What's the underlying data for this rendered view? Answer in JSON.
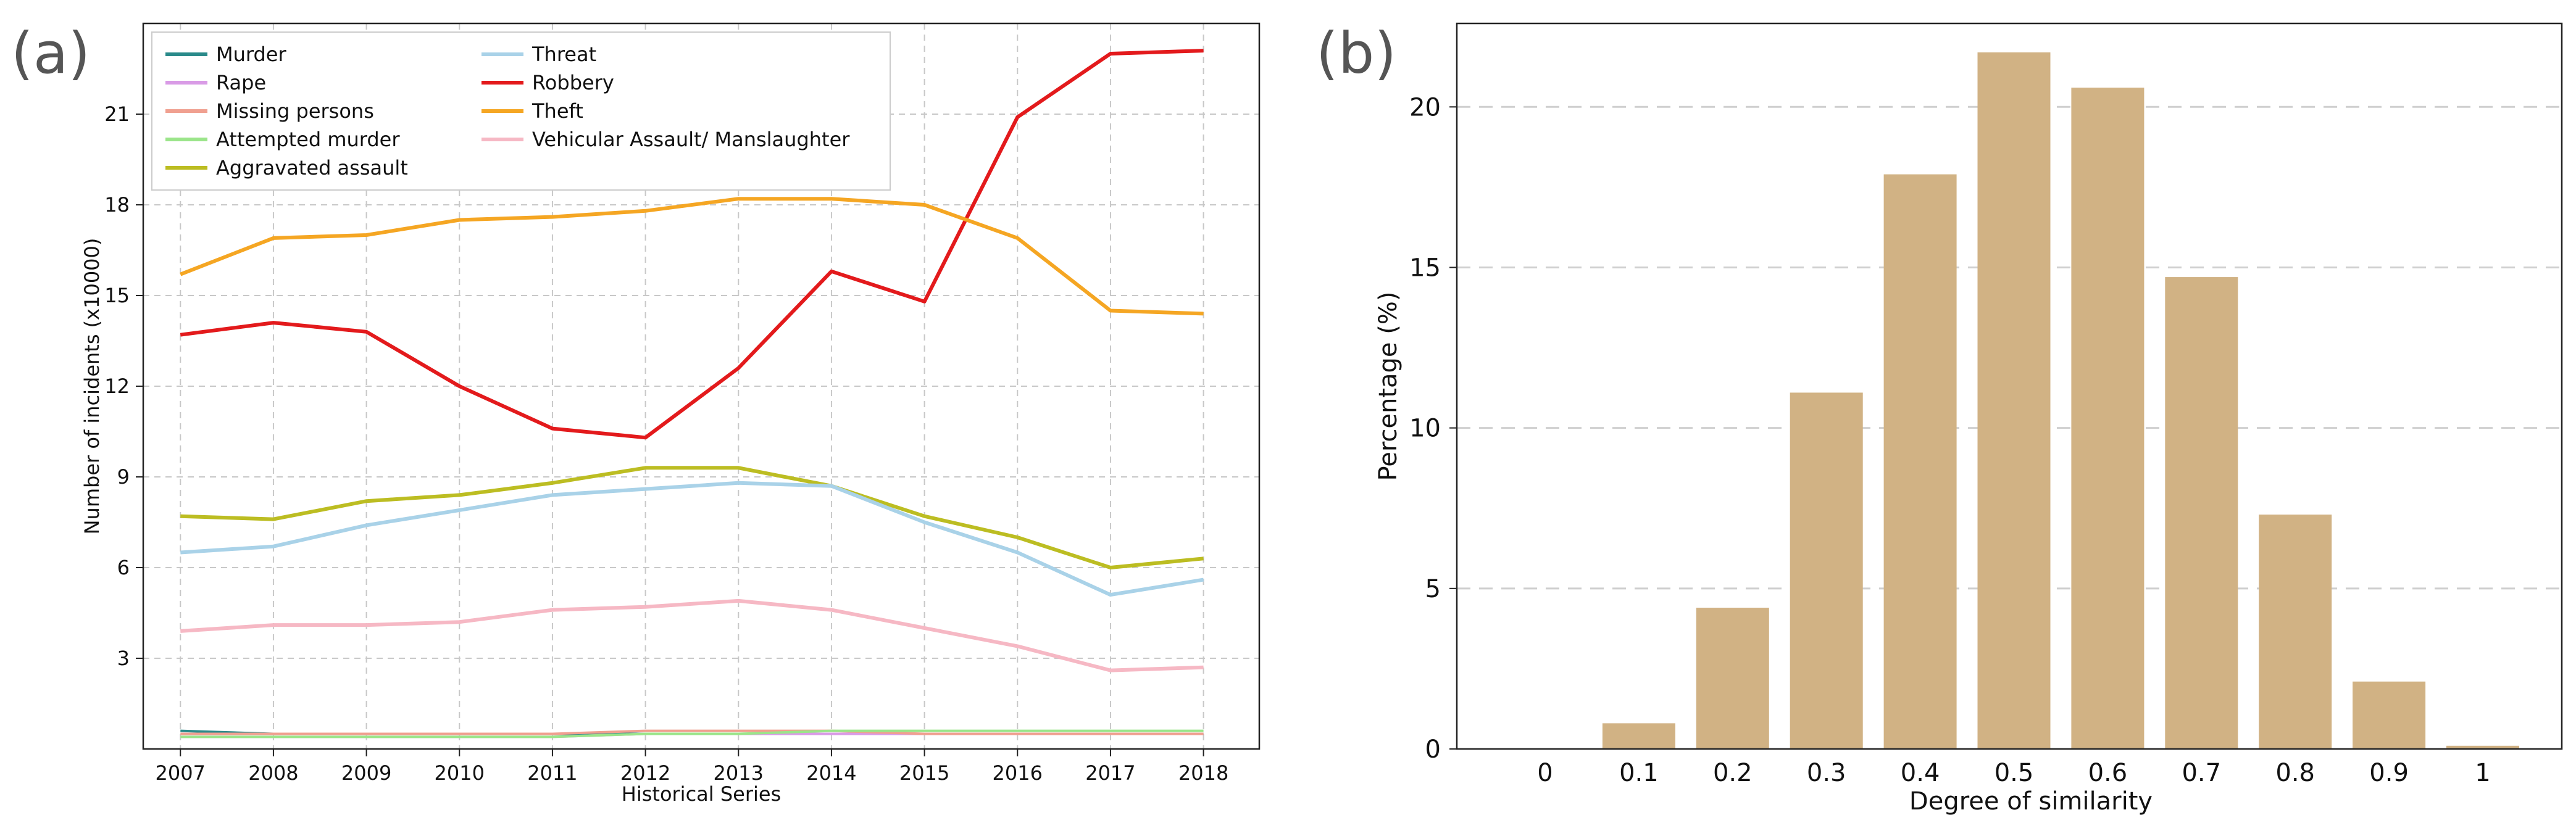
{
  "panel_labels": {
    "a": "(a)",
    "b": "(b)"
  },
  "chart_data": [
    {
      "type": "line",
      "title": "",
      "xlabel": "Historical Series",
      "ylabel": "Number of incidents (x10000)",
      "x": [
        2007,
        2008,
        2009,
        2010,
        2011,
        2012,
        2013,
        2014,
        2015,
        2016,
        2017,
        2018
      ],
      "xticks": [
        "2007",
        "2008",
        "2009",
        "2010",
        "2011",
        "2012",
        "2013",
        "2014",
        "2015",
        "2016",
        "2017",
        "2018"
      ],
      "xlim": [
        2006.6,
        2018.6
      ],
      "ylim": [
        0,
        24
      ],
      "yticks": [
        3,
        6,
        9,
        12,
        15,
        18,
        21
      ],
      "ytick_labels": [
        "3",
        "6",
        "9",
        "12",
        "15",
        "18",
        "21"
      ],
      "grid": true,
      "legend_position": "top-left",
      "series": [
        {
          "name": "Murder",
          "color": "#2a8a8a",
          "values": [
            0.6,
            0.5,
            0.5,
            0.5,
            0.5,
            0.5,
            0.5,
            0.5,
            0.5,
            0.5,
            0.5,
            0.5
          ]
        },
        {
          "name": "Rape",
          "color": "#d99be6",
          "values": [
            0.4,
            0.4,
            0.4,
            0.4,
            0.4,
            0.5,
            0.5,
            0.5,
            0.5,
            0.5,
            0.5,
            0.5
          ]
        },
        {
          "name": "Missing persons",
          "color": "#f0a090",
          "values": [
            0.5,
            0.5,
            0.5,
            0.5,
            0.5,
            0.6,
            0.6,
            0.6,
            0.5,
            0.5,
            0.5,
            0.5
          ]
        },
        {
          "name": "Attempted murder",
          "color": "#9be58a",
          "values": [
            0.4,
            0.4,
            0.4,
            0.4,
            0.4,
            0.5,
            0.5,
            0.6,
            0.6,
            0.6,
            0.6,
            0.6
          ]
        },
        {
          "name": "Aggravated assault",
          "color": "#bcbd22",
          "values": [
            7.7,
            7.6,
            8.2,
            8.4,
            8.8,
            9.3,
            9.3,
            8.7,
            7.7,
            7.0,
            6.0,
            6.3
          ]
        },
        {
          "name": "Threat",
          "color": "#a9d2e8",
          "values": [
            6.5,
            6.7,
            7.4,
            7.9,
            8.4,
            8.6,
            8.8,
            8.7,
            7.5,
            6.5,
            5.1,
            5.6
          ]
        },
        {
          "name": "Robbery",
          "color": "#e31a1c",
          "values": [
            13.7,
            14.1,
            13.8,
            12.0,
            10.6,
            10.3,
            12.6,
            15.8,
            14.8,
            20.9,
            23.0,
            23.1
          ]
        },
        {
          "name": "Theft",
          "color": "#f5a623",
          "values": [
            15.7,
            16.9,
            17.0,
            17.5,
            17.6,
            17.8,
            18.2,
            18.2,
            18.0,
            16.9,
            14.5,
            14.4
          ]
        },
        {
          "name": "Vehicular Assault/ Manslaughter",
          "color": "#f6b8c4",
          "values": [
            3.9,
            4.1,
            4.1,
            4.2,
            4.6,
            4.7,
            4.9,
            4.6,
            4.0,
            3.4,
            2.6,
            2.7
          ]
        }
      ]
    },
    {
      "type": "bar",
      "title": "",
      "xlabel": "Degree of similarity",
      "ylabel": "Percentage (%)",
      "categories": [
        "0",
        "0.1",
        "0.2",
        "0.3",
        "0.4",
        "0.5",
        "0.6",
        "0.7",
        "0.8",
        "0.9",
        "1"
      ],
      "values": [
        0,
        0.8,
        4.4,
        11.1,
        17.9,
        21.7,
        20.6,
        14.7,
        7.3,
        2.1,
        0.1
      ],
      "ylim": [
        0,
        22.6
      ],
      "yticks": [
        0,
        5,
        10,
        15,
        20
      ],
      "ytick_labels": [
        "0",
        "5",
        "10",
        "15",
        "20"
      ],
      "bar_color": "#d1b284",
      "grid": true
    }
  ]
}
